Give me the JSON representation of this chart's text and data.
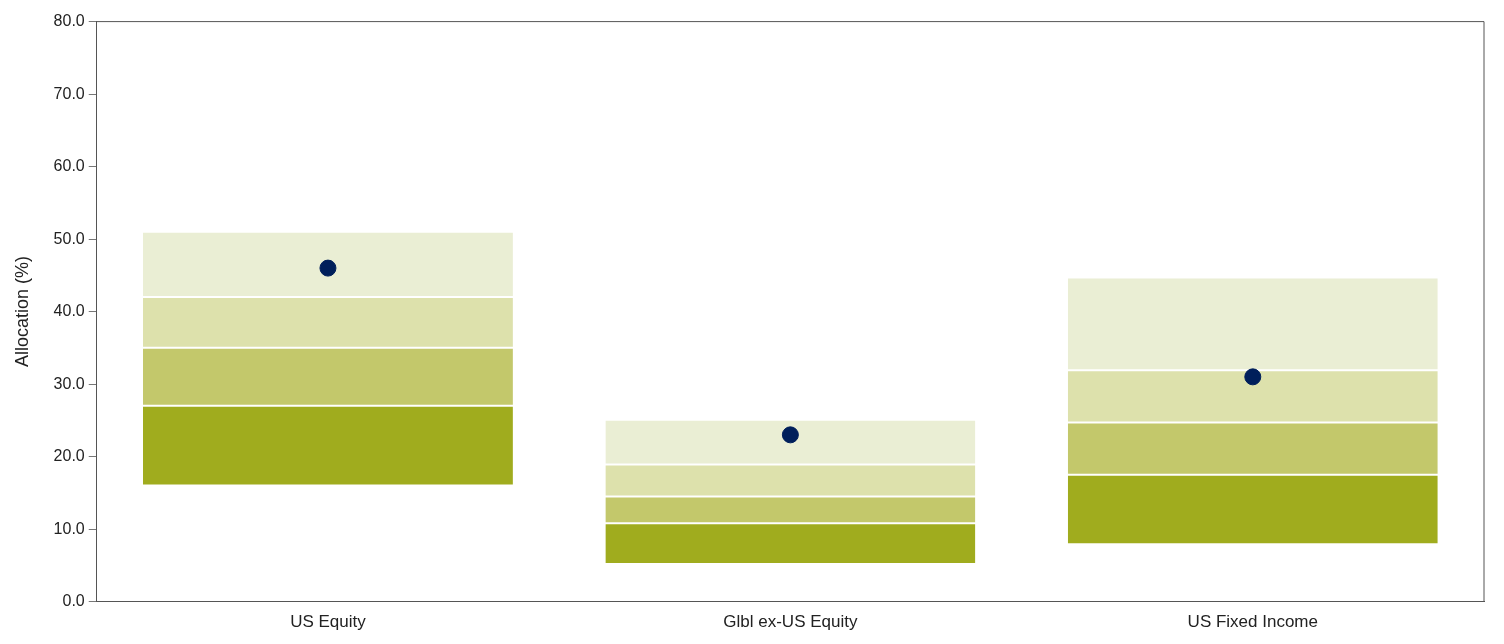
{
  "chart_data": {
    "type": "bar",
    "ylabel": "Allocation (%)",
    "categories": [
      "US Equity",
      "Glbl ex-US Equity",
      "US Fixed Income"
    ],
    "series": [
      {
        "color": "#a0ac1e",
        "base": [
          16,
          5.2,
          7.9
        ],
        "values": [
          11,
          5.6,
          9.6
        ]
      },
      {
        "color": "#c3c86b",
        "base": [
          27,
          10.8,
          17.5
        ],
        "values": [
          8,
          3.7,
          7.2
        ]
      },
      {
        "color": "#dde1ac",
        "base": [
          35,
          14.5,
          24.7
        ],
        "values": [
          7,
          4.4,
          7.2
        ]
      },
      {
        "color": "#eaeed4",
        "base": [
          42,
          18.9,
          31.9
        ],
        "values": [
          9,
          6.2,
          12.8
        ]
      },
      {
        "type": "scatter",
        "x": [
          "US Equity",
          "Glbl ex-US Equity",
          "US Fixed Income"
        ],
        "color": "#001f5b",
        "values": [
          46,
          23,
          31
        ]
      }
    ],
    "marker": "circle",
    "legend": false,
    "ylim": [
      0,
      80
    ],
    "yticks": [
      {
        "value": 0,
        "label": "0.0"
      },
      {
        "value": 10,
        "label": "10.0"
      },
      {
        "value": 20,
        "label": "20.0"
      },
      {
        "value": 30,
        "label": "30.0"
      },
      {
        "value": 40,
        "label": "40.0"
      },
      {
        "value": 50,
        "label": "50.0"
      },
      {
        "value": 60,
        "label": "60.0"
      },
      {
        "value": 70,
        "label": "70.0"
      },
      {
        "value": 80,
        "label": "80.0"
      }
    ]
  }
}
